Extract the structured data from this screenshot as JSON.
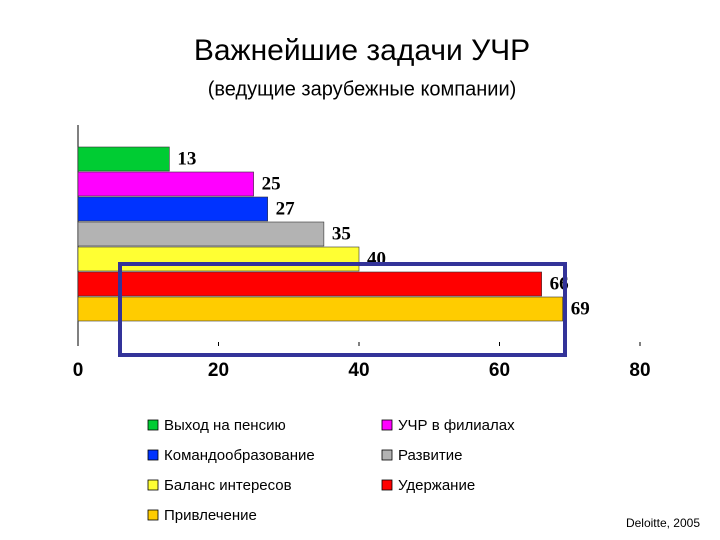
{
  "chart_data": {
    "type": "hbar",
    "title": "Важнейшие задачи УЧР",
    "subtitle": "(ведущие зарубежные компании)",
    "series": [
      {
        "name": "Выход на пенсию",
        "color": "#00cc33",
        "values": [
          13
        ]
      },
      {
        "name": "УЧР в филиалах",
        "color": "#ff00ff",
        "values": [
          25
        ]
      },
      {
        "name": "Командообразование",
        "color": "#0033ff",
        "values": [
          27
        ]
      },
      {
        "name": "Развитие",
        "color": "#b3b3b3",
        "values": [
          35
        ]
      },
      {
        "name": "Баланс интересов",
        "color": "#ffff33",
        "values": [
          40
        ]
      },
      {
        "name": "Удержание",
        "color": "#ff0000",
        "values": [
          66
        ]
      },
      {
        "name": "Привлечение",
        "color": "#ffcc00",
        "values": [
          69
        ]
      }
    ],
    "xlim": [
      0,
      80
    ],
    "xticks": [
      0,
      20,
      40,
      60,
      80
    ],
    "source": "Deloitte, 2005"
  }
}
